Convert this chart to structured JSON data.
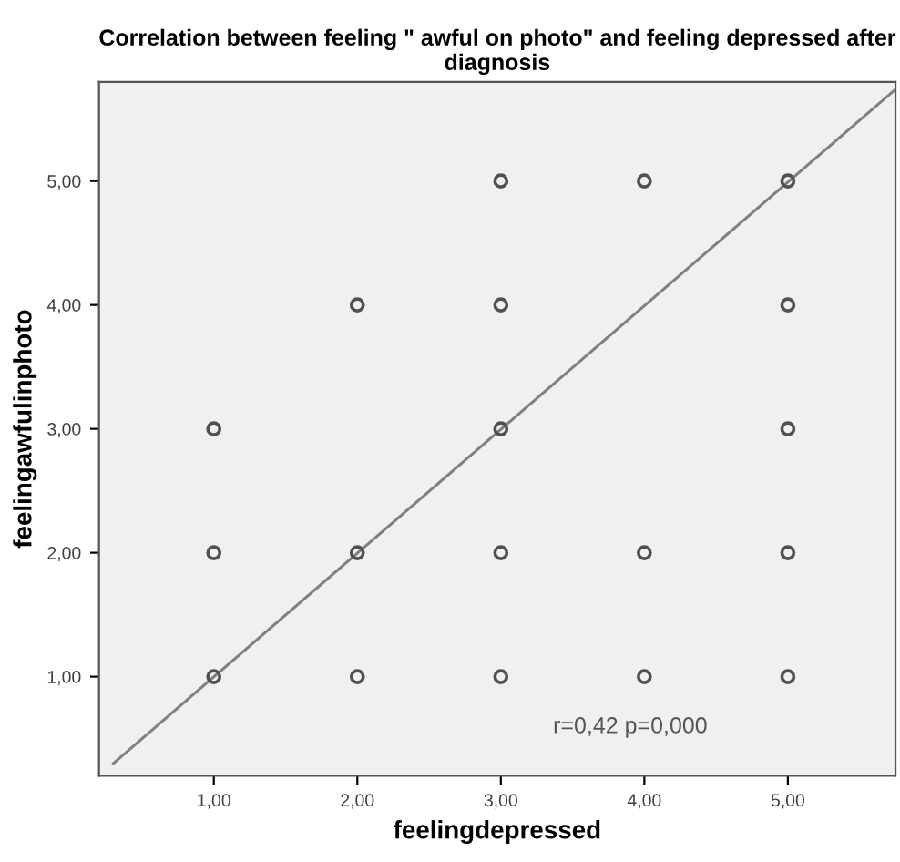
{
  "chart_data": {
    "type": "scatter",
    "title": "Correlation between feeling \" awful on photo\" and feeling depressed after diagnosis",
    "xlabel": "feelingdepressed",
    "ylabel": "feelingawfulinphoto",
    "x": [
      1,
      1,
      1,
      2,
      2,
      2,
      3,
      3,
      3,
      3,
      3,
      4,
      4,
      4,
      5,
      5,
      5,
      5,
      5
    ],
    "series": [
      {
        "color": "#505050",
        "marker": "circle",
        "values": [
          1,
          2,
          3,
          1,
          2,
          4,
          1,
          2,
          3,
          4,
          5,
          1,
          2,
          5,
          1,
          2,
          3,
          4,
          5
        ]
      },
      {
        "type": "line",
        "marker": "none",
        "color": "#808080",
        "x": [
          0.3,
          5.74
        ],
        "values": [
          0.3,
          5.73
        ]
      }
    ],
    "grid": false,
    "legend": false,
    "xlim": [
      0.2,
      5.75
    ],
    "ylim": [
      0.2,
      5.8
    ],
    "xticks": [
      {
        "value": 1,
        "label": "1,00"
      },
      {
        "value": 2,
        "label": "2,00"
      },
      {
        "value": 3,
        "label": "3,00"
      },
      {
        "value": 4,
        "label": "4,00"
      },
      {
        "value": 5,
        "label": "5,00"
      }
    ],
    "yticks": [
      {
        "value": 1,
        "label": "1,00"
      },
      {
        "value": 2,
        "label": "2,00"
      },
      {
        "value": 3,
        "label": "3,00"
      },
      {
        "value": 4,
        "label": "4,00"
      },
      {
        "value": 5,
        "label": "5,00"
      }
    ],
    "annotations": [
      "r=0,42 p=0,000"
    ]
  }
}
